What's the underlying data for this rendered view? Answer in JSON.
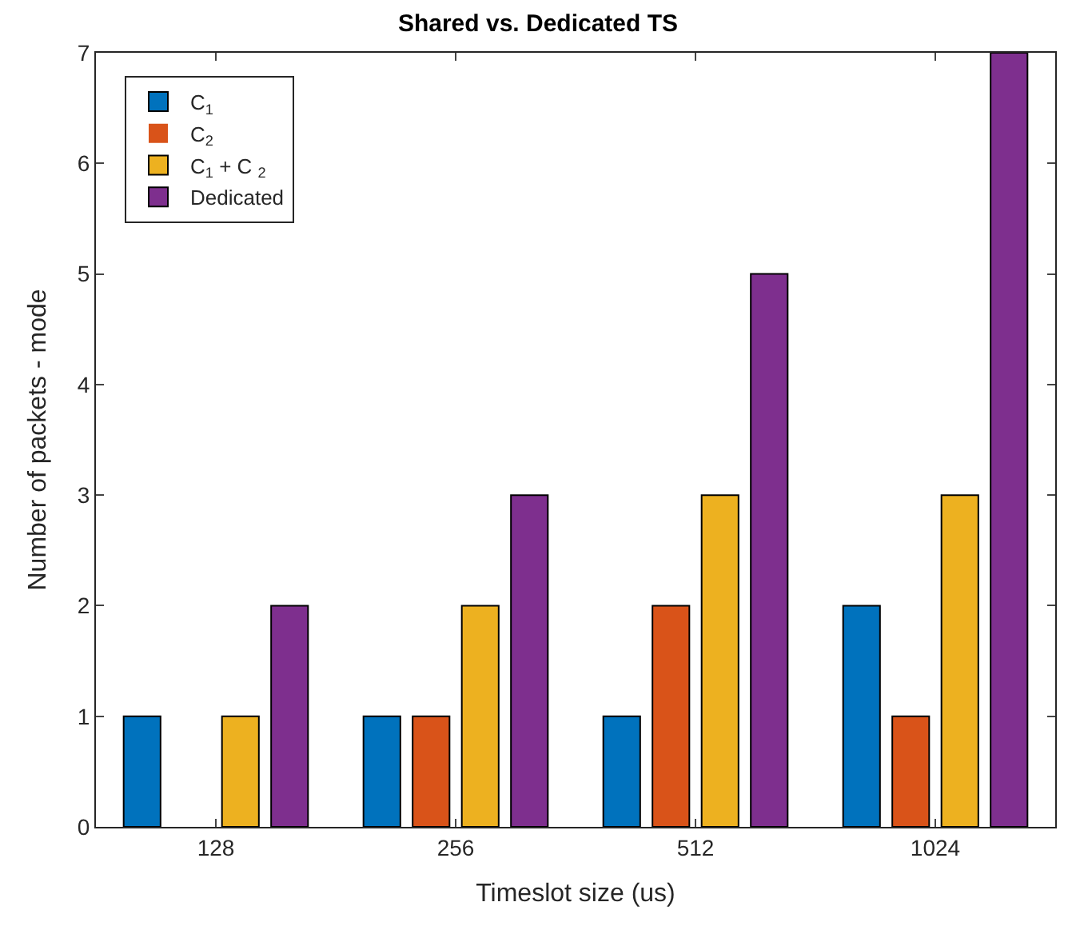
{
  "chart_data": {
    "type": "bar",
    "title": "Shared vs. Dedicated TS",
    "xlabel": "Timeslot size (us)",
    "ylabel": "Number of packets - mode",
    "categories": [
      "128",
      "256",
      "512",
      "1024"
    ],
    "series": [
      {
        "name": "C$_{1}$",
        "color": "#0072bd",
        "values": [
          1,
          1,
          1,
          2
        ]
      },
      {
        "name": "C$_{2}$",
        "color": "#d95319",
        "values": [
          0,
          1,
          2,
          1
        ]
      },
      {
        "name": "C$_{1}$ + C $_{2}$",
        "color": "#edb120",
        "values": [
          1,
          2,
          3,
          3
        ]
      },
      {
        "name": "Dedicated",
        "color": "#7e2f8e",
        "values": [
          2,
          3,
          5,
          7
        ]
      }
    ],
    "ylim": [
      0,
      7
    ],
    "yticks": [
      0,
      1,
      2,
      3,
      4,
      5,
      6,
      7
    ],
    "legend": "top left"
  }
}
